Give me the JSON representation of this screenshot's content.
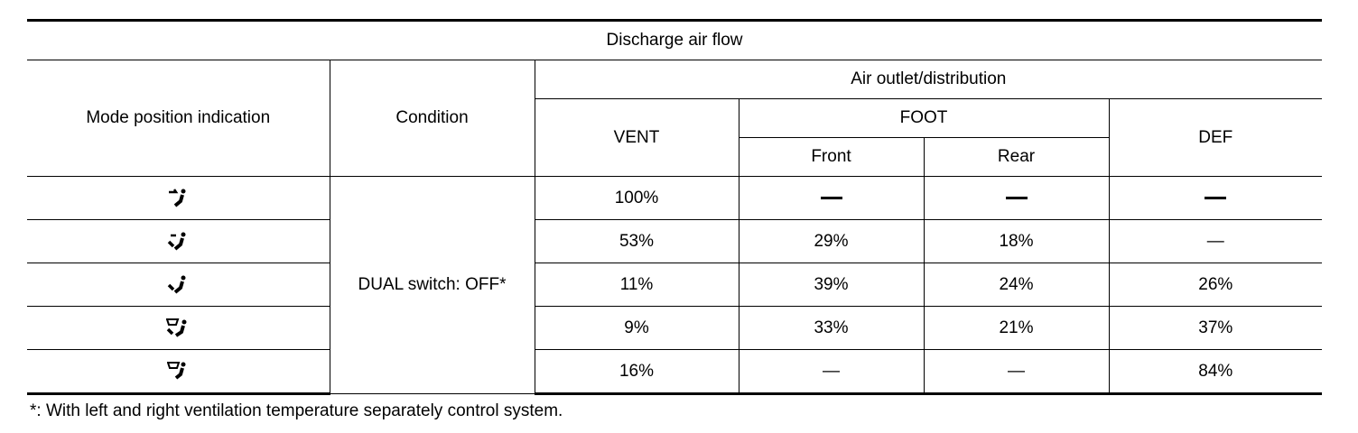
{
  "title": "Discharge air flow",
  "headers": {
    "mode": "Mode position indication",
    "condition": "Condition",
    "outlet": "Air outlet/distribution",
    "vent": "VENT",
    "foot": "FOOT",
    "front": "Front",
    "rear": "Rear",
    "def": "DEF"
  },
  "condition_value": "DUAL switch: OFF*",
  "rows": [
    {
      "icon": "mode-vent-icon",
      "vent": "100%",
      "front": "—",
      "rear": "—",
      "def": "—"
    },
    {
      "icon": "mode-bi-level-icon",
      "vent": "53%",
      "front": "29%",
      "rear": "18%",
      "def": "—"
    },
    {
      "icon": "mode-foot-icon",
      "vent": "11%",
      "front": "39%",
      "rear": "24%",
      "def": "26%"
    },
    {
      "icon": "mode-foot-defrost-icon",
      "vent": "9%",
      "front": "33%",
      "rear": "21%",
      "def": "37%"
    },
    {
      "icon": "mode-defrost-icon",
      "vent": "16%",
      "front": "—",
      "rear": "—",
      "def": "84%"
    }
  ],
  "footnote": "*: With left and right ventilation temperature separately control system."
}
